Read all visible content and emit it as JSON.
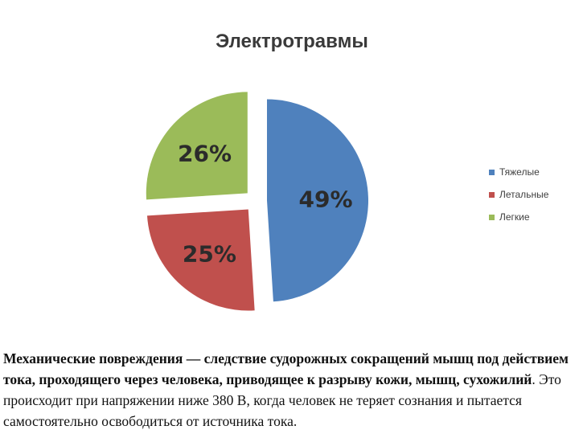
{
  "chart_data": {
    "type": "pie",
    "title": "Электротравмы",
    "categories": [
      "Тяжелые",
      "Летальные",
      "Легкие"
    ],
    "values": [
      49,
      25,
      26
    ],
    "labels": [
      "49%",
      "25%",
      "26%"
    ],
    "colors": [
      "#4f81bd",
      "#c0504d",
      "#9bbb59"
    ],
    "legend": "right",
    "exploded": true
  },
  "caption": {
    "bold_part": "Механические повреждения — следствие судорожных сокращений мышц под действием тока, проходящего через человека, приводящее к разрыву кожи, мышц, сухожилий",
    "normal_part": ". Это происходит при напряжении ниже 380 В, когда человек не теряет сознания и пытается самостоятельно освободиться от источника тока."
  }
}
